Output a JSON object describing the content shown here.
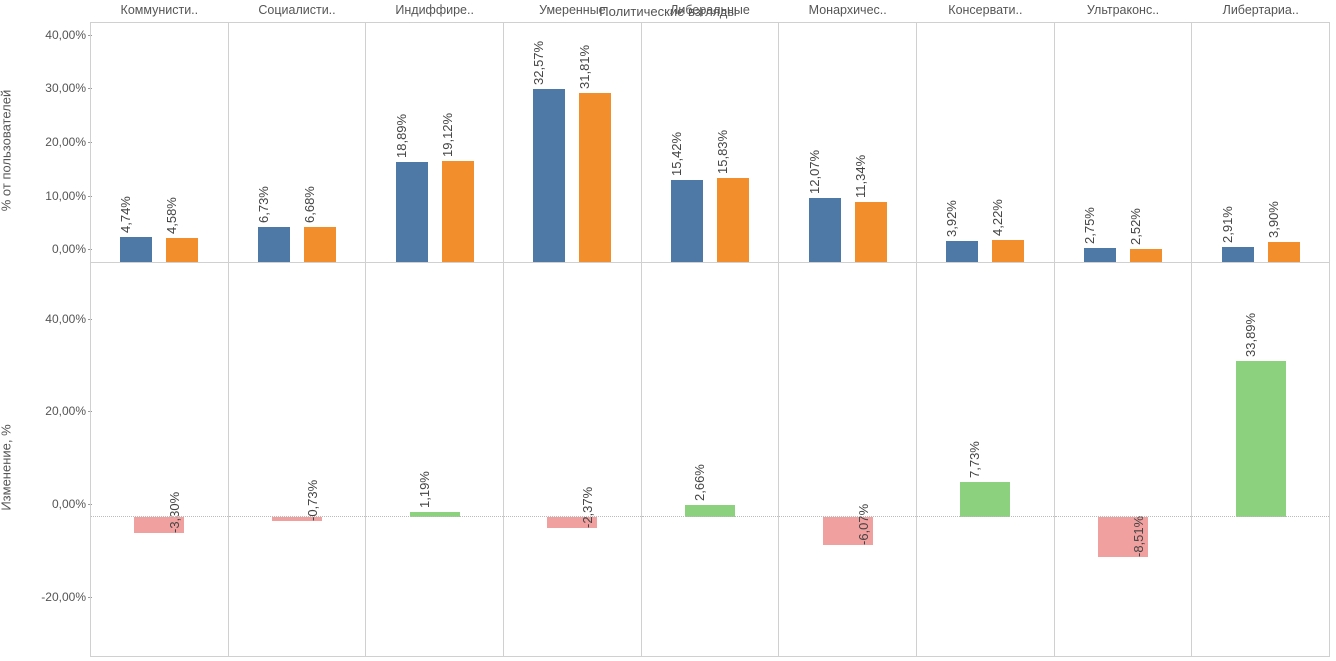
{
  "chart": {
    "title": "Политические взгляды",
    "categories": [
      "Коммунисти..",
      "Социалисти..",
      "Индиффире..",
      "Умеренные",
      "Либеральные",
      "Монархичес..",
      "Консервати..",
      "Ультраконс..",
      "Либертариа.."
    ],
    "top_panel": {
      "ylabel": "% от пользователей",
      "ymin": 0,
      "ymax": 45,
      "ticks": [
        0,
        10,
        20,
        30,
        40
      ],
      "tick_labels": [
        "0,00%",
        "10,00%",
        "20,00%",
        "30,00%",
        "40,00%"
      ],
      "series_a": {
        "color": "#4e79a7",
        "values": [
          4.74,
          6.73,
          18.89,
          32.57,
          15.42,
          12.07,
          3.92,
          2.75,
          2.91
        ],
        "labels": [
          "4,74%",
          "6,73%",
          "18,89%",
          "32,57%",
          "15,42%",
          "12,07%",
          "3,92%",
          "2,75%",
          "2,91%"
        ]
      },
      "series_b": {
        "color": "#f28e2b",
        "values": [
          4.58,
          6.68,
          19.12,
          31.81,
          15.83,
          11.34,
          4.22,
          2.52,
          3.9
        ],
        "labels": [
          "4,58%",
          "6,68%",
          "19,12%",
          "31,81%",
          "15,83%",
          "11,34%",
          "4,22%",
          "2,52%",
          "3,90%"
        ]
      }
    },
    "bottom_panel": {
      "ylabel": "Изменение, %",
      "ymin": -30,
      "ymax": 55,
      "zero_dotted": true,
      "ticks": [
        -20,
        0,
        20,
        40
      ],
      "tick_labels": [
        "-20,00%",
        "0,00%",
        "20,00%",
        "40,00%"
      ],
      "color_pos": "#8cd17d",
      "color_neg": "#f1a0a0",
      "values": [
        -3.3,
        -0.73,
        1.19,
        -2.37,
        2.66,
        -6.07,
        7.73,
        -8.51,
        33.89
      ],
      "labels": [
        "-3,30%",
        "-0,73%",
        "1,19%",
        "-2,37%",
        "2,66%",
        "-6,07%",
        "7,73%",
        "-8,51%",
        "33,89%"
      ]
    },
    "grid_color": "#d0d0d0",
    "background_color": "#ffffff",
    "label_fontsize": 13,
    "tick_fontsize": 12
  }
}
